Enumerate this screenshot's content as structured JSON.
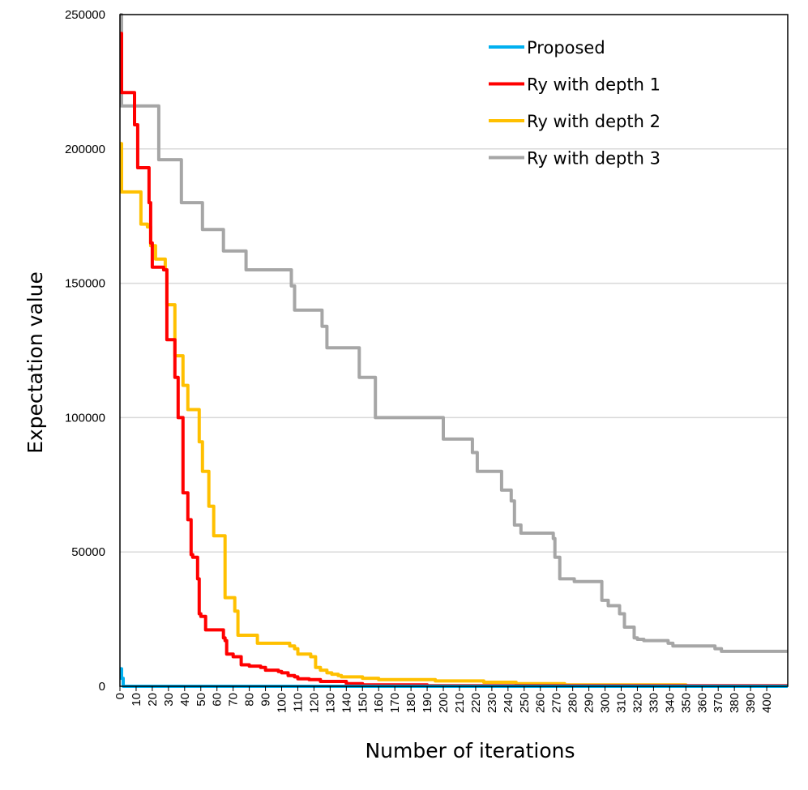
{
  "chart_data": {
    "type": "line",
    "title": "",
    "xlabel": "Number of iterations",
    "ylabel": "Expectation value",
    "xlim": [
      0,
      413
    ],
    "ylim": [
      0,
      250000
    ],
    "x_ticks": [
      0,
      10,
      20,
      30,
      40,
      50,
      60,
      70,
      80,
      90,
      100,
      110,
      120,
      130,
      140,
      150,
      160,
      170,
      180,
      190,
      200,
      210,
      220,
      230,
      240,
      250,
      260,
      270,
      280,
      290,
      300,
      310,
      320,
      330,
      340,
      350,
      360,
      370,
      380,
      390,
      400
    ],
    "y_ticks": [
      0,
      50000,
      100000,
      150000,
      200000,
      250000
    ],
    "grid": "horizontal",
    "legend_position": "top-right",
    "series": [
      {
        "name": "Proposed",
        "color": "#00b0f0",
        "x": [
          0,
          1,
          1,
          2,
          2,
          413
        ],
        "y": [
          6500,
          6500,
          3000,
          3000,
          0,
          0
        ]
      },
      {
        "name": "Ry with depth 1",
        "color": "#ff0000",
        "x": [
          0,
          1,
          1,
          3,
          3,
          9,
          9,
          11,
          11,
          13,
          13,
          18,
          18,
          19,
          19,
          20,
          20,
          27,
          27,
          29,
          29,
          34,
          34,
          36,
          36,
          39,
          39,
          42,
          42,
          44,
          44,
          45,
          45,
          48,
          48,
          49,
          49,
          50,
          50,
          53,
          53,
          61,
          61,
          64,
          64,
          65,
          65,
          66,
          66,
          67,
          67,
          70,
          70,
          75,
          75,
          80,
          80,
          87,
          87,
          90,
          90,
          98,
          98,
          100,
          100,
          104,
          104,
          108,
          108,
          110,
          110,
          117,
          117,
          124,
          124,
          140,
          140,
          150,
          150,
          190,
          190,
          413
        ],
        "y": [
          243000,
          243000,
          221000,
          221000,
          221000,
          221000,
          209000,
          209000,
          193000,
          193000,
          193000,
          193000,
          180000,
          180000,
          165000,
          165000,
          156000,
          156000,
          155000,
          155000,
          129000,
          129000,
          115000,
          115000,
          100000,
          100000,
          72000,
          72000,
          62000,
          62000,
          49000,
          49000,
          48000,
          48000,
          40000,
          40000,
          27000,
          27000,
          26000,
          26000,
          21000,
          21000,
          21000,
          21000,
          18000,
          18000,
          17000,
          17000,
          12000,
          12000,
          12000,
          12000,
          11000,
          11000,
          8000,
          8000,
          7500,
          7500,
          7000,
          7000,
          6000,
          6000,
          5500,
          5500,
          5000,
          5000,
          4000,
          4000,
          3500,
          3500,
          2800,
          2800,
          2500,
          2500,
          1800,
          1800,
          1000,
          1000,
          500,
          500,
          200,
          200
        ]
      },
      {
        "name": "Ry with depth 2",
        "color": "#ffc000",
        "x": [
          0,
          1,
          1,
          13,
          13,
          17,
          17,
          19,
          19,
          22,
          22,
          28,
          28,
          29,
          29,
          30,
          30,
          34,
          34,
          39,
          39,
          42,
          42,
          45,
          45,
          49,
          49,
          51,
          51,
          55,
          55,
          58,
          58,
          61,
          61,
          65,
          65,
          67,
          67,
          71,
          71,
          73,
          73,
          75,
          75,
          85,
          85,
          105,
          105,
          108,
          108,
          110,
          110,
          118,
          118,
          121,
          121,
          124,
          124,
          128,
          128,
          131,
          131,
          133,
          133,
          135,
          135,
          137,
          137,
          145,
          145,
          150,
          150,
          160,
          160,
          195,
          195,
          225,
          225,
          245,
          245,
          275,
          275,
          350,
          350,
          413
        ],
        "y": [
          202000,
          202000,
          184000,
          184000,
          172000,
          172000,
          171000,
          171000,
          164000,
          164000,
          159000,
          159000,
          155000,
          155000,
          142000,
          142000,
          142000,
          142000,
          123000,
          123000,
          112000,
          112000,
          103000,
          103000,
          103000,
          103000,
          91000,
          91000,
          80000,
          80000,
          67000,
          67000,
          56000,
          56000,
          56000,
          56000,
          33000,
          33000,
          33000,
          33000,
          28000,
          28000,
          19000,
          19000,
          19000,
          19000,
          16000,
          16000,
          15000,
          15000,
          14000,
          14000,
          12000,
          12000,
          11000,
          11000,
          7000,
          7000,
          6000,
          6000,
          5000,
          5000,
          4500,
          4500,
          4500,
          4500,
          4000,
          4000,
          3500,
          3500,
          3500,
          3500,
          3000,
          3000,
          2500,
          2500,
          2000,
          2000,
          1500,
          1500,
          1000,
          1000,
          500,
          500,
          0,
          0
        ]
      },
      {
        "name": "Ry with depth 3",
        "color": "#a6a6a6",
        "x": [
          0,
          1,
          1,
          24,
          24,
          38,
          38,
          51,
          51,
          64,
          64,
          78,
          78,
          104,
          104,
          106,
          106,
          108,
          108,
          125,
          125,
          128,
          128,
          131,
          131,
          148,
          148,
          158,
          158,
          200,
          200,
          218,
          218,
          221,
          221,
          225,
          225,
          236,
          236,
          242,
          242,
          244,
          244,
          248,
          248,
          268,
          268,
          269,
          269,
          270,
          270,
          272,
          272,
          281,
          281,
          298,
          298,
          300,
          300,
          302,
          302,
          309,
          309,
          312,
          312,
          318,
          318,
          320,
          320,
          324,
          324,
          339,
          339,
          342,
          342,
          368,
          368,
          372,
          372,
          378,
          378,
          389,
          389,
          413
        ],
        "y": [
          250000,
          250000,
          216000,
          216000,
          196000,
          196000,
          180000,
          180000,
          170000,
          170000,
          162000,
          162000,
          155000,
          155000,
          155000,
          155000,
          149000,
          149000,
          140000,
          140000,
          134000,
          134000,
          126000,
          126000,
          126000,
          126000,
          115000,
          115000,
          100000,
          100000,
          92000,
          92000,
          87000,
          87000,
          80000,
          80000,
          80000,
          80000,
          73000,
          73000,
          69000,
          69000,
          60000,
          60000,
          57000,
          57000,
          55000,
          55000,
          48000,
          48000,
          48000,
          48000,
          40000,
          40000,
          39000,
          39000,
          32000,
          32000,
          32000,
          32000,
          30000,
          30000,
          27000,
          27000,
          22000,
          22000,
          18000,
          18000,
          17500,
          17500,
          17000,
          17000,
          16000,
          16000,
          15000,
          15000,
          14000,
          14000,
          13000,
          13000,
          13000,
          13000,
          13000,
          13000
        ]
      }
    ]
  }
}
